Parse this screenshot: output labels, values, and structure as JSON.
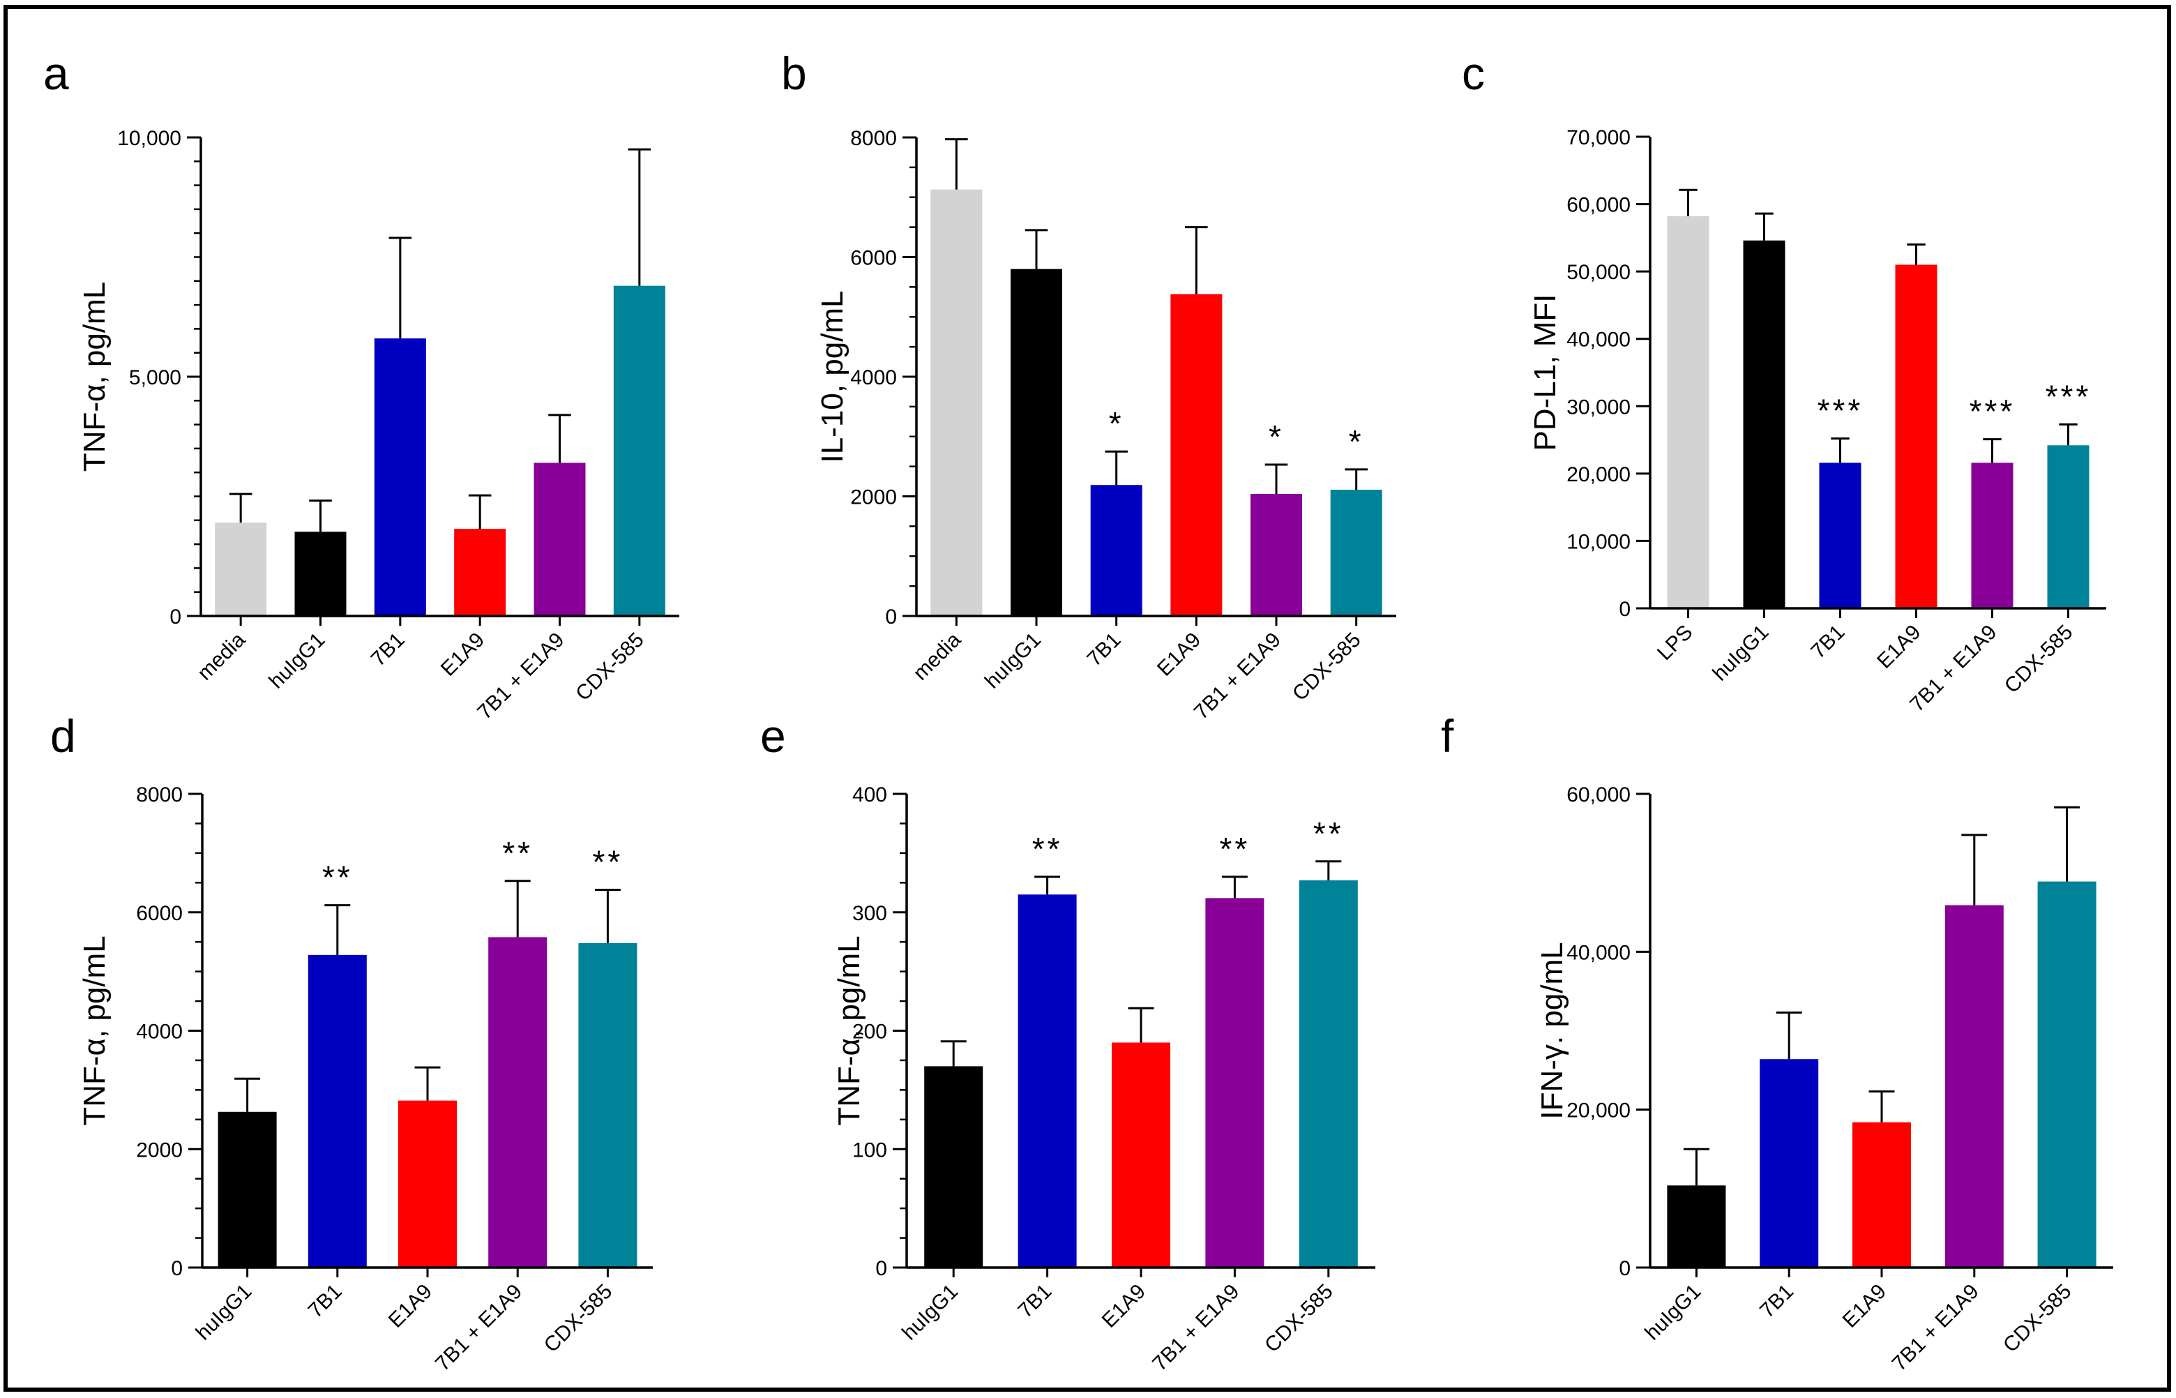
{
  "chart_data": [
    {
      "panel": "a",
      "type": "bar",
      "ylabel": "TNF-α, pg/mL",
      "categories": [
        "media",
        "huIgG1",
        "7B1",
        "E1A9",
        "7B1 + E1A9",
        "CDX-585"
      ],
      "values": [
        1950,
        1760,
        5800,
        1820,
        3200,
        6900
      ],
      "errors": [
        600,
        650,
        2100,
        700,
        1000,
        2850
      ],
      "colors": [
        "#d3d3d3",
        "#000000",
        "#0000c0",
        "#ff0000",
        "#880098",
        "#008298"
      ],
      "significance": [
        "",
        "",
        "",
        "",
        "",
        ""
      ],
      "ylim": [
        0,
        10000
      ],
      "yticks": [
        0,
        5000,
        10000
      ],
      "ytick_labels": [
        "0",
        "5,000",
        "10,000"
      ],
      "minor_step": 500
    },
    {
      "panel": "b",
      "type": "bar",
      "ylabel": "IL-10, pg/mL",
      "categories": [
        "media",
        "huIgG1",
        "7B1",
        "E1A9",
        "7B1 + E1A9",
        "CDX-585"
      ],
      "values": [
        7130,
        5800,
        2190,
        5380,
        2040,
        2110
      ],
      "errors": [
        840,
        650,
        560,
        1120,
        490,
        340
      ],
      "colors": [
        "#d3d3d3",
        "#000000",
        "#0000c0",
        "#ff0000",
        "#880098",
        "#008298"
      ],
      "significance": [
        "",
        "",
        "*",
        "",
        "*",
        "*"
      ],
      "ylim": [
        0,
        8000
      ],
      "yticks": [
        0,
        2000,
        4000,
        6000,
        8000
      ],
      "ytick_labels": [
        "0",
        "2000",
        "4000",
        "6000",
        "8000"
      ],
      "minor_step": 500
    },
    {
      "panel": "c",
      "type": "bar",
      "ylabel": "PD-L1, MFI",
      "categories": [
        "LPS",
        "huIgG1",
        "7B1",
        "E1A9",
        "7B1 + E1A9",
        "CDX-585"
      ],
      "values": [
        58200,
        54600,
        21600,
        51000,
        21600,
        24200
      ],
      "errors": [
        3900,
        4000,
        3600,
        3000,
        3500,
        3100
      ],
      "colors": [
        "#d3d3d3",
        "#000000",
        "#0000c0",
        "#ff0000",
        "#880098",
        "#008298"
      ],
      "significance": [
        "",
        "",
        "***",
        "",
        "***",
        "***"
      ],
      "ylim": [
        0,
        70000
      ],
      "yticks": [
        0,
        10000,
        20000,
        30000,
        40000,
        50000,
        60000,
        70000
      ],
      "ytick_labels": [
        "0",
        "10,000",
        "20,000",
        "30,000",
        "40,000",
        "50,000",
        "60,000",
        "70,000"
      ],
      "minor_step": 0
    },
    {
      "panel": "d",
      "type": "bar",
      "ylabel": "TNF-α, pg/mL",
      "categories": [
        "huIgG1",
        "7B1",
        "E1A9",
        "7B1 + E1A9",
        "CDX-585"
      ],
      "values": [
        2630,
        5280,
        2820,
        5580,
        5480
      ],
      "errors": [
        560,
        840,
        560,
        950,
        900
      ],
      "colors": [
        "#000000",
        "#0000c0",
        "#ff0000",
        "#880098",
        "#008298"
      ],
      "significance": [
        "",
        "**",
        "",
        "**",
        "**"
      ],
      "ylim": [
        0,
        8000
      ],
      "yticks": [
        0,
        2000,
        4000,
        6000,
        8000
      ],
      "ytick_labels": [
        "0",
        "2000",
        "4000",
        "6000",
        "8000"
      ],
      "minor_step": 500
    },
    {
      "panel": "e",
      "type": "bar",
      "ylabel": "TNF-α, pg/mL",
      "categories": [
        "huIgG1",
        "7B1",
        "E1A9",
        "7B1 + E1A9",
        "CDX-585"
      ],
      "values": [
        170,
        315,
        190,
        312,
        327
      ],
      "errors": [
        21,
        15,
        29,
        18,
        16
      ],
      "colors": [
        "#000000",
        "#0000c0",
        "#ff0000",
        "#880098",
        "#008298"
      ],
      "significance": [
        "",
        "**",
        "",
        "**",
        "**"
      ],
      "ylim": [
        0,
        400
      ],
      "yticks": [
        0,
        100,
        200,
        300,
        400
      ],
      "ytick_labels": [
        "0",
        "100",
        "200",
        "300",
        "400"
      ],
      "minor_step": 25
    },
    {
      "panel": "f",
      "type": "bar",
      "ylabel": "IFN-γ. pg/mL",
      "categories": [
        "huIgG1",
        "7B1",
        "E1A9",
        "7B1 + E1A9",
        "CDX-585"
      ],
      "values": [
        10400,
        26400,
        18400,
        45900,
        48900
      ],
      "errors": [
        4600,
        5900,
        3900,
        8900,
        9400
      ],
      "colors": [
        "#000000",
        "#0000c0",
        "#ff0000",
        "#880098",
        "#008298"
      ],
      "significance": [
        "",
        "",
        "",
        "",
        ""
      ],
      "ylim": [
        0,
        60000
      ],
      "yticks": [
        0,
        20000,
        40000,
        60000
      ],
      "ytick_labels": [
        "0",
        "20,000",
        "40,000",
        "60,000"
      ],
      "minor_step": 0
    }
  ]
}
